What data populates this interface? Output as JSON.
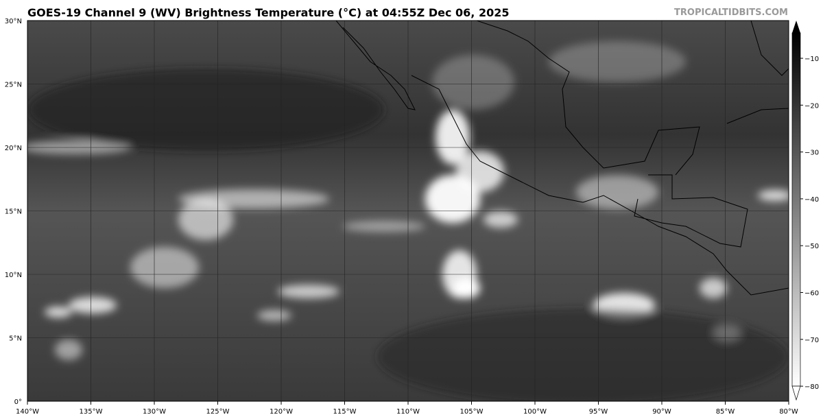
{
  "header": {
    "title": "GOES-19 Channel 9 (WV) Brightness Temperature (°C) at 04:55Z Dec 06, 2025",
    "watermark": "TROPICALTIDBITS.COM"
  },
  "map": {
    "lon_range": [
      -140,
      -80
    ],
    "lat_range": [
      0,
      30
    ],
    "grid": true,
    "lat_labels": [
      "0°",
      "5°N",
      "10°N",
      "15°N",
      "20°N",
      "25°N",
      "30°N"
    ],
    "lon_labels": [
      "140°W",
      "135°W",
      "130°W",
      "125°W",
      "120°W",
      "115°W",
      "110°W",
      "105°W",
      "100°W",
      "95°W",
      "90°W",
      "85°W",
      "80°W"
    ]
  },
  "colorbar": {
    "range": [
      -80,
      -10
    ],
    "ticks": [
      "−10",
      "−20",
      "−30",
      "−40",
      "−50",
      "−60",
      "−70",
      "−80"
    ],
    "extend": "both",
    "colormap": "grayscale (cold = white, warm = black)"
  }
}
